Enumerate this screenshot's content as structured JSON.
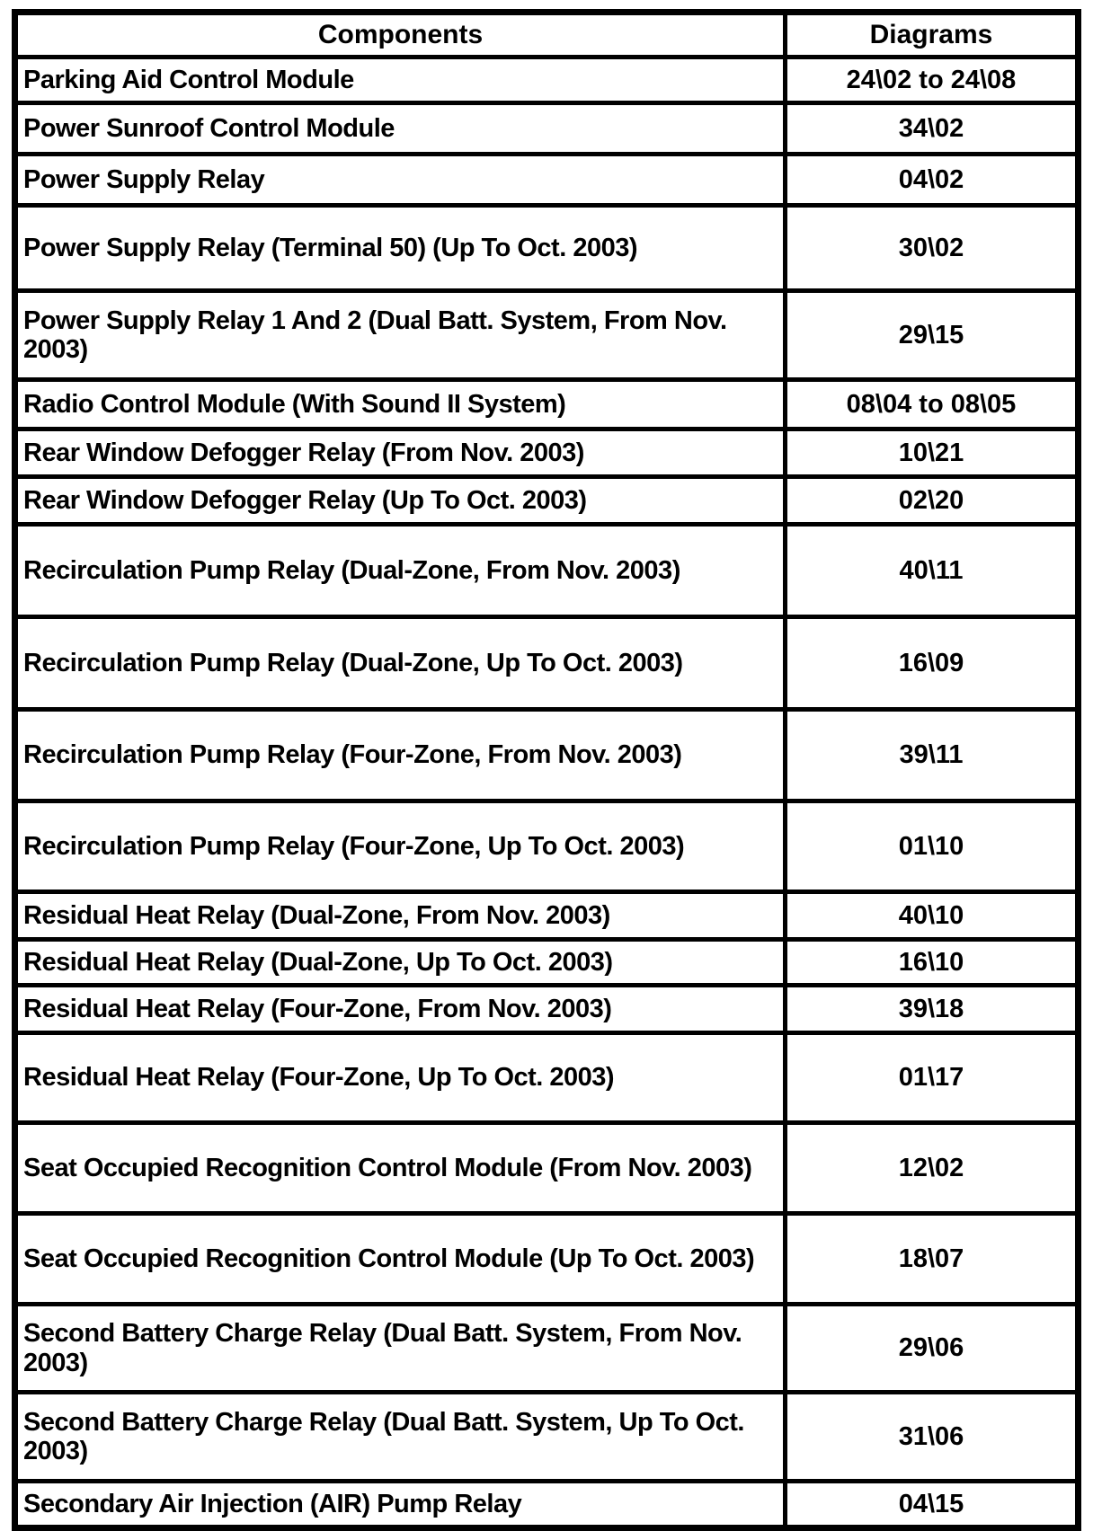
{
  "table": {
    "headers": [
      "Components",
      "Diagrams"
    ],
    "rows": [
      {
        "component": "Parking Aid Control Module",
        "diagram": "24\\02 to 24\\08"
      },
      {
        "component": "Power Sunroof Control Module",
        "diagram": "34\\02"
      },
      {
        "component": "Power Supply Relay",
        "diagram": "04\\02"
      },
      {
        "component": "Power Supply Relay (Terminal 50) (Up To Oct. 2003)",
        "diagram": "30\\02"
      },
      {
        "component": "Power Supply Relay 1 And 2 (Dual Batt. System, From Nov. 2003)",
        "diagram": "29\\15"
      },
      {
        "component": "Radio Control Module (With Sound II System)",
        "diagram": "08\\04 to 08\\05"
      },
      {
        "component": "Rear Window Defogger Relay (From Nov. 2003)",
        "diagram": "10\\21"
      },
      {
        "component": "Rear Window Defogger Relay (Up To Oct. 2003)",
        "diagram": "02\\20"
      },
      {
        "component": "Recirculation Pump Relay (Dual-Zone, From Nov. 2003)",
        "diagram": "40\\11"
      },
      {
        "component": "Recirculation Pump Relay (Dual-Zone, Up To Oct. 2003)",
        "diagram": "16\\09"
      },
      {
        "component": "Recirculation Pump Relay (Four-Zone, From Nov. 2003)",
        "diagram": "39\\11"
      },
      {
        "component": "Recirculation Pump Relay (Four-Zone, Up To Oct. 2003)",
        "diagram": "01\\10"
      },
      {
        "component": "Residual Heat Relay (Dual-Zone, From Nov. 2003)",
        "diagram": "40\\10"
      },
      {
        "component": "Residual Heat Relay (Dual-Zone, Up To Oct. 2003)",
        "diagram": "16\\10"
      },
      {
        "component": "Residual Heat Relay (Four-Zone, From Nov. 2003)",
        "diagram": "39\\18"
      },
      {
        "component": "Residual Heat Relay (Four-Zone, Up To Oct. 2003)",
        "diagram": "01\\17"
      },
      {
        "component": "Seat Occupied Recognition Control Module (From Nov. 2003)",
        "diagram": "12\\02"
      },
      {
        "component": "Seat Occupied Recognition Control Module (Up To Oct. 2003)",
        "diagram": "18\\07"
      },
      {
        "component": "Second Battery Charge Relay (Dual Batt. System, From Nov. 2003)",
        "diagram": "29\\06"
      },
      {
        "component": "Second Battery Charge Relay (Dual Batt. System, Up To Oct. 2003)",
        "diagram": "31\\06"
      },
      {
        "component": "Secondary Air Injection (AIR) Pump Relay",
        "diagram": "04\\15"
      }
    ]
  }
}
